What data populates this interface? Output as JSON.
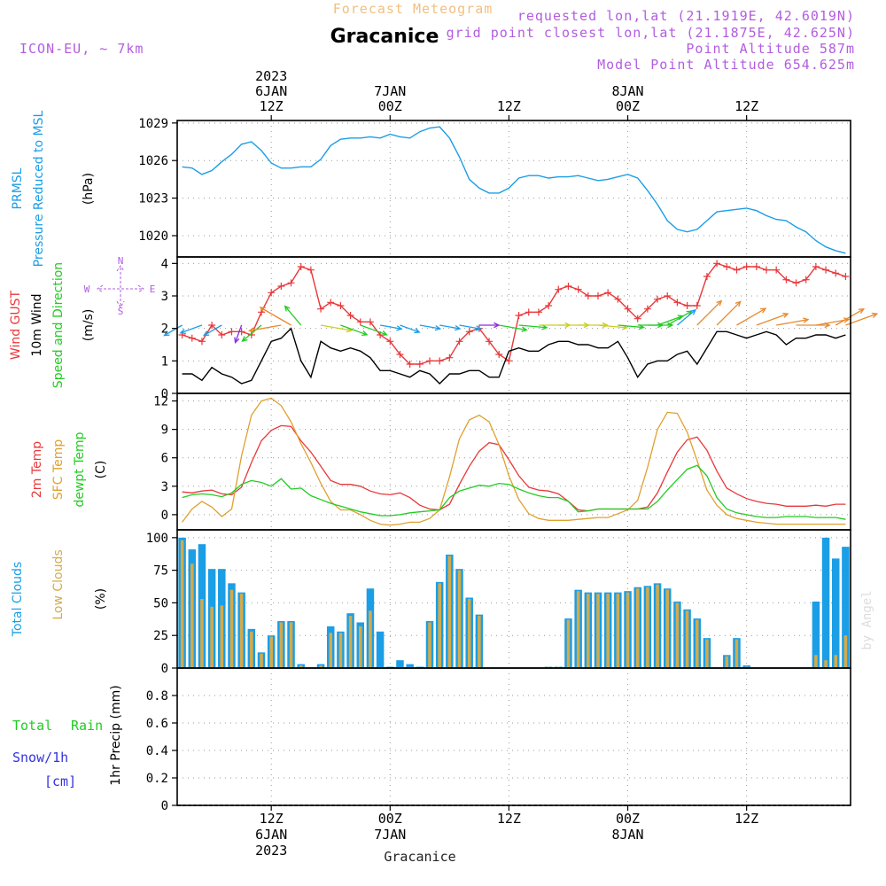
{
  "header": {
    "subtitle": "Forecast Meteogram",
    "title": "Gracanice",
    "model": "ICON-EU, ~ 7km",
    "requested": "requested lon,lat (21.1919E, 42.6019N)",
    "closest": "grid point closest lon,lat (21.1875E, 42.625N)",
    "altitude": "Point Altitude 587m",
    "model_altitude": "Model Point Altitude 654.625m",
    "watermark": "by Angel",
    "footer": "Gracanice"
  },
  "time": {
    "start_hour": 3,
    "end_hour": 70,
    "year": "2023",
    "ticks": [
      {
        "hour": 12,
        "hh": "12Z",
        "day": "6JAN",
        "year": "2023"
      },
      {
        "hour": 24,
        "hh": "00Z",
        "day": "7JAN"
      },
      {
        "hour": 36,
        "hh": "12Z"
      },
      {
        "hour": 48,
        "hh": "00Z",
        "day": "8JAN"
      },
      {
        "hour": 60,
        "hh": "12Z"
      },
      {
        "hour": 72,
        "hh": "00Z",
        "day": "9JAN"
      }
    ]
  },
  "colors": {
    "pressure": "#1a9ee6",
    "gust": "#e8383a",
    "wind": "#000000",
    "temp2m": "#e8383a",
    "sfc": "#e0a030",
    "dewpt": "#22cc22",
    "total_clouds": "#1a9ee6",
    "low_clouds": "#d4aa4a",
    "rain": "#22cc22",
    "snow": "#3333dd",
    "header_purple": "#b25de0",
    "header_orange": "#f0c080"
  },
  "panels": {
    "pressure": {
      "labels": [
        "PRMSL",
        "Pressure Reduced to MSL",
        "(hPa)"
      ]
    },
    "wind": {
      "labels": [
        "Wind GUST",
        "10m Wind",
        "Speed and Direction",
        "(m/s)"
      ],
      "compass": {
        "n": "N",
        "s": "S",
        "w": "W",
        "e": "E"
      }
    },
    "temp": {
      "labels": [
        "2m Temp",
        "SFC Temp",
        "dewpt Temp",
        "(C)"
      ]
    },
    "clouds": {
      "labels": [
        "Total Clouds",
        "Low Clouds",
        "(%)"
      ]
    },
    "precip": {
      "labels": [
        "Total",
        "Rain",
        "Snow/1h",
        "[cm]",
        "1hr Precip (mm)"
      ]
    }
  },
  "chart_data": [
    {
      "type": "line",
      "title": "PRMSL Pressure Reduced to MSL",
      "ylabel": "hPa",
      "ylim": [
        1018.3,
        1029.2
      ],
      "yticks": [
        1020,
        1023,
        1026,
        1029
      ],
      "x": [
        3,
        4,
        5,
        6,
        7,
        8,
        9,
        10,
        11,
        12,
        13,
        14,
        15,
        16,
        17,
        18,
        19,
        20,
        21,
        22,
        23,
        24,
        25,
        26,
        27,
        28,
        29,
        30,
        31,
        32,
        33,
        34,
        35,
        36,
        37,
        38,
        39,
        40,
        41,
        42,
        43,
        44,
        45,
        46,
        47,
        48,
        49,
        50,
        51,
        52,
        53,
        54,
        55,
        56,
        57,
        58,
        59,
        60,
        61,
        62,
        63,
        64,
        65,
        66,
        67,
        68,
        69,
        70
      ],
      "series": [
        {
          "name": "PRMSL",
          "color": "#1a9ee6",
          "values": [
            1025.5,
            1025.4,
            1024.9,
            1025.2,
            1025.9,
            1026.5,
            1027.3,
            1027.5,
            1026.8,
            1025.8,
            1025.4,
            1025.4,
            1025.5,
            1025.5,
            1026.1,
            1027.2,
            1027.7,
            1027.8,
            1027.8,
            1027.9,
            1027.8,
            1028.1,
            1027.9,
            1027.8,
            1028.3,
            1028.6,
            1028.7,
            1027.8,
            1026.3,
            1024.5,
            1023.8,
            1023.4,
            1023.4,
            1023.8,
            1024.6,
            1024.8,
            1024.8,
            1024.6,
            1024.7,
            1024.7,
            1024.8,
            1024.6,
            1024.4,
            1024.5,
            1024.7,
            1024.9,
            1024.6,
            1023.6,
            1022.5,
            1021.2,
            1020.5,
            1020.3,
            1020.5,
            1021.2,
            1021.9,
            1022.0,
            1022.1,
            1022.2,
            1022.0,
            1021.6,
            1021.3,
            1021.2,
            1020.7,
            1020.3,
            1019.6,
            1019.1,
            1018.8,
            1018.6
          ]
        }
      ]
    },
    {
      "type": "line",
      "title": "Wind GUST / 10m Wind",
      "ylabel": "m/s",
      "ylim": [
        0,
        4.2
      ],
      "yticks": [
        0,
        1,
        2,
        3,
        4
      ],
      "x": [
        3,
        4,
        5,
        6,
        7,
        8,
        9,
        10,
        11,
        12,
        13,
        14,
        15,
        16,
        17,
        18,
        19,
        20,
        21,
        22,
        23,
        24,
        25,
        26,
        27,
        28,
        29,
        30,
        31,
        32,
        33,
        34,
        35,
        36,
        37,
        38,
        39,
        40,
        41,
        42,
        43,
        44,
        45,
        46,
        47,
        48,
        49,
        50,
        51,
        52,
        53,
        54,
        55,
        56,
        57,
        58,
        59,
        60,
        61,
        62,
        63,
        64,
        65,
        66,
        67,
        68,
        69,
        70
      ],
      "series": [
        {
          "name": "Wind GUST",
          "color": "#e8383a",
          "values": [
            1.8,
            1.7,
            1.6,
            2.1,
            1.8,
            1.9,
            1.9,
            1.8,
            2.5,
            3.1,
            3.3,
            3.4,
            3.9,
            3.8,
            2.6,
            2.8,
            2.7,
            2.4,
            2.2,
            2.2,
            1.8,
            1.6,
            1.2,
            0.9,
            0.9,
            1.0,
            1.0,
            1.1,
            1.6,
            1.9,
            2.0,
            1.6,
            1.2,
            1.0,
            2.4,
            2.5,
            2.5,
            2.7,
            3.2,
            3.3,
            3.2,
            3.0,
            3.0,
            3.1,
            2.9,
            2.6,
            2.3,
            2.6,
            2.9,
            3.0,
            2.8,
            2.7,
            2.7,
            3.6,
            4.0,
            3.9,
            3.8,
            3.9,
            3.9,
            3.8,
            3.8,
            3.5,
            3.4,
            3.5,
            3.9,
            3.8,
            3.7,
            3.6
          ]
        },
        {
          "name": "10m Wind",
          "color": "#000000",
          "values": [
            0.6,
            0.6,
            0.4,
            0.8,
            0.6,
            0.5,
            0.3,
            0.4,
            1.0,
            1.6,
            1.7,
            2.0,
            1.0,
            0.5,
            1.6,
            1.4,
            1.3,
            1.4,
            1.3,
            1.1,
            0.7,
            0.7,
            0.6,
            0.5,
            0.7,
            0.6,
            0.3,
            0.6,
            0.6,
            0.7,
            0.7,
            0.5,
            0.5,
            1.3,
            1.4,
            1.3,
            1.3,
            1.5,
            1.6,
            1.6,
            1.5,
            1.5,
            1.4,
            1.4,
            1.6,
            1.1,
            0.5,
            0.9,
            1.0,
            1.0,
            1.2,
            1.3,
            0.9,
            1.4,
            1.9,
            1.9,
            1.8,
            1.7,
            1.8,
            1.9,
            1.8,
            1.5,
            1.7,
            1.7,
            1.8,
            1.8,
            1.7,
            1.8
          ]
        }
      ],
      "wind_arrows": {
        "x": [
          3,
          5,
          7,
          9,
          11,
          13,
          14,
          15,
          17,
          19,
          21,
          23,
          25,
          27,
          29,
          31,
          33,
          35,
          37,
          39,
          41,
          43,
          45,
          47,
          49,
          50,
          51,
          52,
          53,
          55,
          57,
          59,
          61,
          63,
          65,
          67,
          69,
          70
        ],
        "dir_deg": [
          240,
          250,
          240,
          200,
          230,
          260,
          300,
          320,
          100,
          110,
          110,
          100,
          110,
          100,
          100,
          100,
          90,
          100,
          95,
          90,
          90,
          90,
          95,
          95,
          90,
          90,
          70,
          60,
          50,
          45,
          45,
          60,
          70,
          80,
          90,
          80,
          60,
          70
        ],
        "speed": [
          0.6,
          0.8,
          0.6,
          0.4,
          1.0,
          1.7,
          2.0,
          1.0,
          1.6,
          1.3,
          1.3,
          0.7,
          0.6,
          0.6,
          0.6,
          0.7,
          0.5,
          1.3,
          1.3,
          1.6,
          1.5,
          1.4,
          1.4,
          1.1,
          1.0,
          1.0,
          1.2,
          1.3,
          0.9,
          1.9,
          1.8,
          1.8,
          1.8,
          1.7,
          1.8,
          1.8,
          1.7,
          1.8
        ]
      }
    },
    {
      "type": "line",
      "title": "Temperatures",
      "ylabel": "C",
      "ylim": [
        -1.6,
        12.8
      ],
      "yticks": [
        0,
        3,
        6,
        9,
        12
      ],
      "x": [
        3,
        4,
        5,
        6,
        7,
        8,
        9,
        10,
        11,
        12,
        13,
        14,
        15,
        16,
        17,
        18,
        19,
        20,
        21,
        22,
        23,
        24,
        25,
        26,
        27,
        28,
        29,
        30,
        31,
        32,
        33,
        34,
        35,
        36,
        37,
        38,
        39,
        40,
        41,
        42,
        43,
        44,
        45,
        46,
        47,
        48,
        49,
        50,
        51,
        52,
        53,
        54,
        55,
        56,
        57,
        58,
        59,
        60,
        61,
        62,
        63,
        64,
        65,
        66,
        67,
        68,
        69,
        70
      ],
      "series": [
        {
          "name": "2m Temp",
          "color": "#e8383a",
          "values": [
            2.4,
            2.3,
            2.5,
            2.6,
            2.2,
            2.1,
            2.9,
            5.5,
            7.8,
            8.9,
            9.4,
            9.3,
            7.8,
            6.6,
            5.1,
            3.6,
            3.2,
            3.2,
            3.0,
            2.5,
            2.2,
            2.1,
            2.3,
            1.8,
            1.0,
            0.6,
            0.5,
            1.1,
            3.2,
            5.1,
            6.7,
            7.6,
            7.4,
            5.8,
            4.1,
            2.9,
            2.6,
            2.5,
            2.2,
            1.4,
            0.5,
            0.4,
            0.6,
            0.6,
            0.6,
            0.6,
            0.6,
            0.8,
            2.3,
            4.5,
            6.6,
            7.9,
            8.2,
            6.8,
            4.6,
            2.8,
            2.2,
            1.7,
            1.4,
            1.2,
            1.1,
            0.9,
            0.9,
            0.9,
            1.0,
            0.9,
            1.1,
            1.1
          ]
        },
        {
          "name": "SFC Temp",
          "color": "#e0a030",
          "values": [
            -0.8,
            0.6,
            1.4,
            0.8,
            -0.2,
            0.6,
            6.2,
            10.5,
            12.0,
            12.3,
            11.5,
            9.8,
            7.5,
            5.5,
            3.3,
            1.4,
            0.5,
            0.5,
            0.0,
            -0.6,
            -1.0,
            -1.1,
            -1.0,
            -0.8,
            -0.8,
            -0.4,
            0.5,
            4.0,
            8.0,
            10.0,
            10.5,
            9.8,
            7.4,
            4.1,
            1.6,
            0.1,
            -0.4,
            -0.6,
            -0.6,
            -0.6,
            -0.5,
            -0.4,
            -0.3,
            -0.3,
            0.1,
            0.5,
            1.5,
            5.0,
            9.0,
            10.8,
            10.7,
            8.7,
            5.7,
            2.6,
            1.0,
            0.0,
            -0.4,
            -0.6,
            -0.8,
            -0.9,
            -1.0,
            -1.0,
            -1.0,
            -1.0,
            -1.0,
            -1.0,
            -1.0,
            -1.0
          ]
        },
        {
          "name": "dewpt Temp",
          "color": "#22cc22",
          "values": [
            1.8,
            2.1,
            2.2,
            2.1,
            1.9,
            2.3,
            3.2,
            3.6,
            3.4,
            3.0,
            3.8,
            2.7,
            2.8,
            2.0,
            1.6,
            1.2,
            0.9,
            0.6,
            0.3,
            0.1,
            -0.1,
            -0.1,
            0.0,
            0.2,
            0.3,
            0.4,
            0.5,
            1.8,
            2.5,
            2.8,
            3.1,
            3.0,
            3.3,
            3.2,
            2.7,
            2.3,
            2.0,
            1.8,
            1.8,
            1.4,
            0.3,
            0.4,
            0.6,
            0.6,
            0.6,
            0.6,
            0.6,
            0.6,
            1.4,
            2.6,
            3.7,
            4.8,
            5.2,
            4.1,
            1.8,
            0.6,
            0.2,
            0.0,
            -0.2,
            -0.3,
            -0.3,
            -0.2,
            -0.2,
            -0.2,
            -0.3,
            -0.3,
            -0.3,
            -0.5
          ]
        }
      ]
    },
    {
      "type": "bar",
      "title": "Total and Low Clouds",
      "ylabel": "%",
      "ylim": [
        0,
        106
      ],
      "yticks": [
        0,
        25,
        50,
        75,
        100
      ],
      "x": [
        3,
        4,
        5,
        6,
        7,
        8,
        9,
        10,
        11,
        12,
        13,
        14,
        15,
        16,
        17,
        18,
        19,
        20,
        21,
        22,
        23,
        24,
        25,
        26,
        27,
        28,
        29,
        30,
        31,
        32,
        33,
        34,
        35,
        36,
        37,
        38,
        39,
        40,
        41,
        42,
        43,
        44,
        45,
        46,
        47,
        48,
        49,
        50,
        51,
        52,
        53,
        54,
        55,
        56,
        57,
        58,
        59,
        60,
        61,
        62,
        63,
        64,
        65,
        66,
        67,
        68,
        69,
        70
      ],
      "series": [
        {
          "name": "Total Clouds",
          "color": "#1a9ee6",
          "values": [
            100,
            91,
            95,
            76,
            76,
            65,
            58,
            30,
            12,
            25,
            36,
            36,
            3,
            0,
            3,
            32,
            28,
            42,
            35,
            61,
            28,
            1,
            6,
            3,
            1,
            36,
            66,
            87,
            76,
            54,
            41,
            0,
            0,
            0,
            0,
            0,
            0,
            1,
            1,
            38,
            60,
            58,
            58,
            58,
            58,
            59,
            62,
            63,
            65,
            61,
            51,
            45,
            38,
            23,
            0,
            10,
            23,
            2,
            0,
            0,
            0,
            0,
            0,
            0,
            51,
            100,
            84,
            93
          ]
        },
        {
          "name": "Low Clouds",
          "color": "#d4aa4a",
          "values": [
            98,
            80,
            53,
            47,
            48,
            60,
            57,
            28,
            11,
            24,
            35,
            35,
            2,
            0,
            2,
            27,
            27,
            40,
            32,
            44,
            0,
            0,
            0,
            0,
            0,
            35,
            65,
            86,
            75,
            53,
            40,
            0,
            0,
            0,
            0,
            0,
            0,
            1,
            1,
            37,
            59,
            57,
            57,
            57,
            57,
            58,
            61,
            62,
            64,
            60,
            50,
            44,
            37,
            22,
            0,
            9,
            22,
            1,
            0,
            0,
            0,
            0,
            0,
            0,
            10,
            6,
            10,
            25
          ]
        }
      ]
    },
    {
      "type": "bar",
      "title": "1hr Precip",
      "ylabel": "1hr Precip (mm)",
      "ylim": [
        0,
        1.0
      ],
      "yticks": [
        0,
        0.2,
        0.4,
        0.6,
        0.8
      ],
      "series": [
        {
          "name": "Total Rain",
          "color": "#22cc22",
          "values": []
        },
        {
          "name": "Snow/1h",
          "color": "#3333dd",
          "values": []
        }
      ]
    }
  ]
}
